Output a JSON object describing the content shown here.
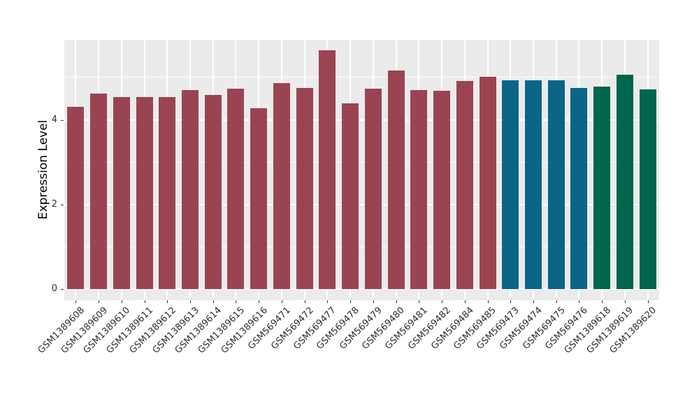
{
  "figure": {
    "background": "#FFFFFF",
    "panel_background": "#EBEBEB",
    "grid_color": "#FFFFFF"
  },
  "chart_data": {
    "type": "bar",
    "title": "",
    "xlabel": "",
    "ylabel": "Expression Level",
    "yticks": [
      0,
      2,
      4
    ],
    "minor_gridlines": [
      1,
      3,
      5
    ],
    "ylim": [
      -0.26,
      5.89
    ],
    "grid": "on",
    "legend": "none",
    "group_colors": {
      "group1": "#9A4452",
      "group2": "#0A6587",
      "group3": "#00664B"
    },
    "categories": [
      "GSM1389608",
      "GSM1389609",
      "GSM1389610",
      "GSM1389611",
      "GSM1389612",
      "GSM1389613",
      "GSM1389614",
      "GSM1389615",
      "GSM1389616",
      "GSM569471",
      "GSM569472",
      "GSM569477",
      "GSM569478",
      "GSM569479",
      "GSM569480",
      "GSM569481",
      "GSM569482",
      "GSM569484",
      "GSM569485",
      "GSM569473",
      "GSM569474",
      "GSM569475",
      "GSM569476",
      "GSM1389618",
      "GSM1389619",
      "GSM1389620"
    ],
    "values": [
      4.3,
      4.62,
      4.54,
      4.54,
      4.54,
      4.71,
      4.58,
      4.73,
      4.28,
      4.86,
      4.75,
      5.64,
      4.39,
      4.73,
      5.17,
      4.71,
      4.68,
      4.92,
      5.02,
      4.93,
      4.94,
      4.93,
      4.76,
      4.79,
      5.06,
      4.72
    ],
    "bar_groups": [
      "group1",
      "group1",
      "group1",
      "group1",
      "group1",
      "group1",
      "group1",
      "group1",
      "group1",
      "group1",
      "group1",
      "group1",
      "group1",
      "group1",
      "group1",
      "group1",
      "group1",
      "group1",
      "group1",
      "group2",
      "group2",
      "group2",
      "group2",
      "group3",
      "group3",
      "group3"
    ]
  }
}
